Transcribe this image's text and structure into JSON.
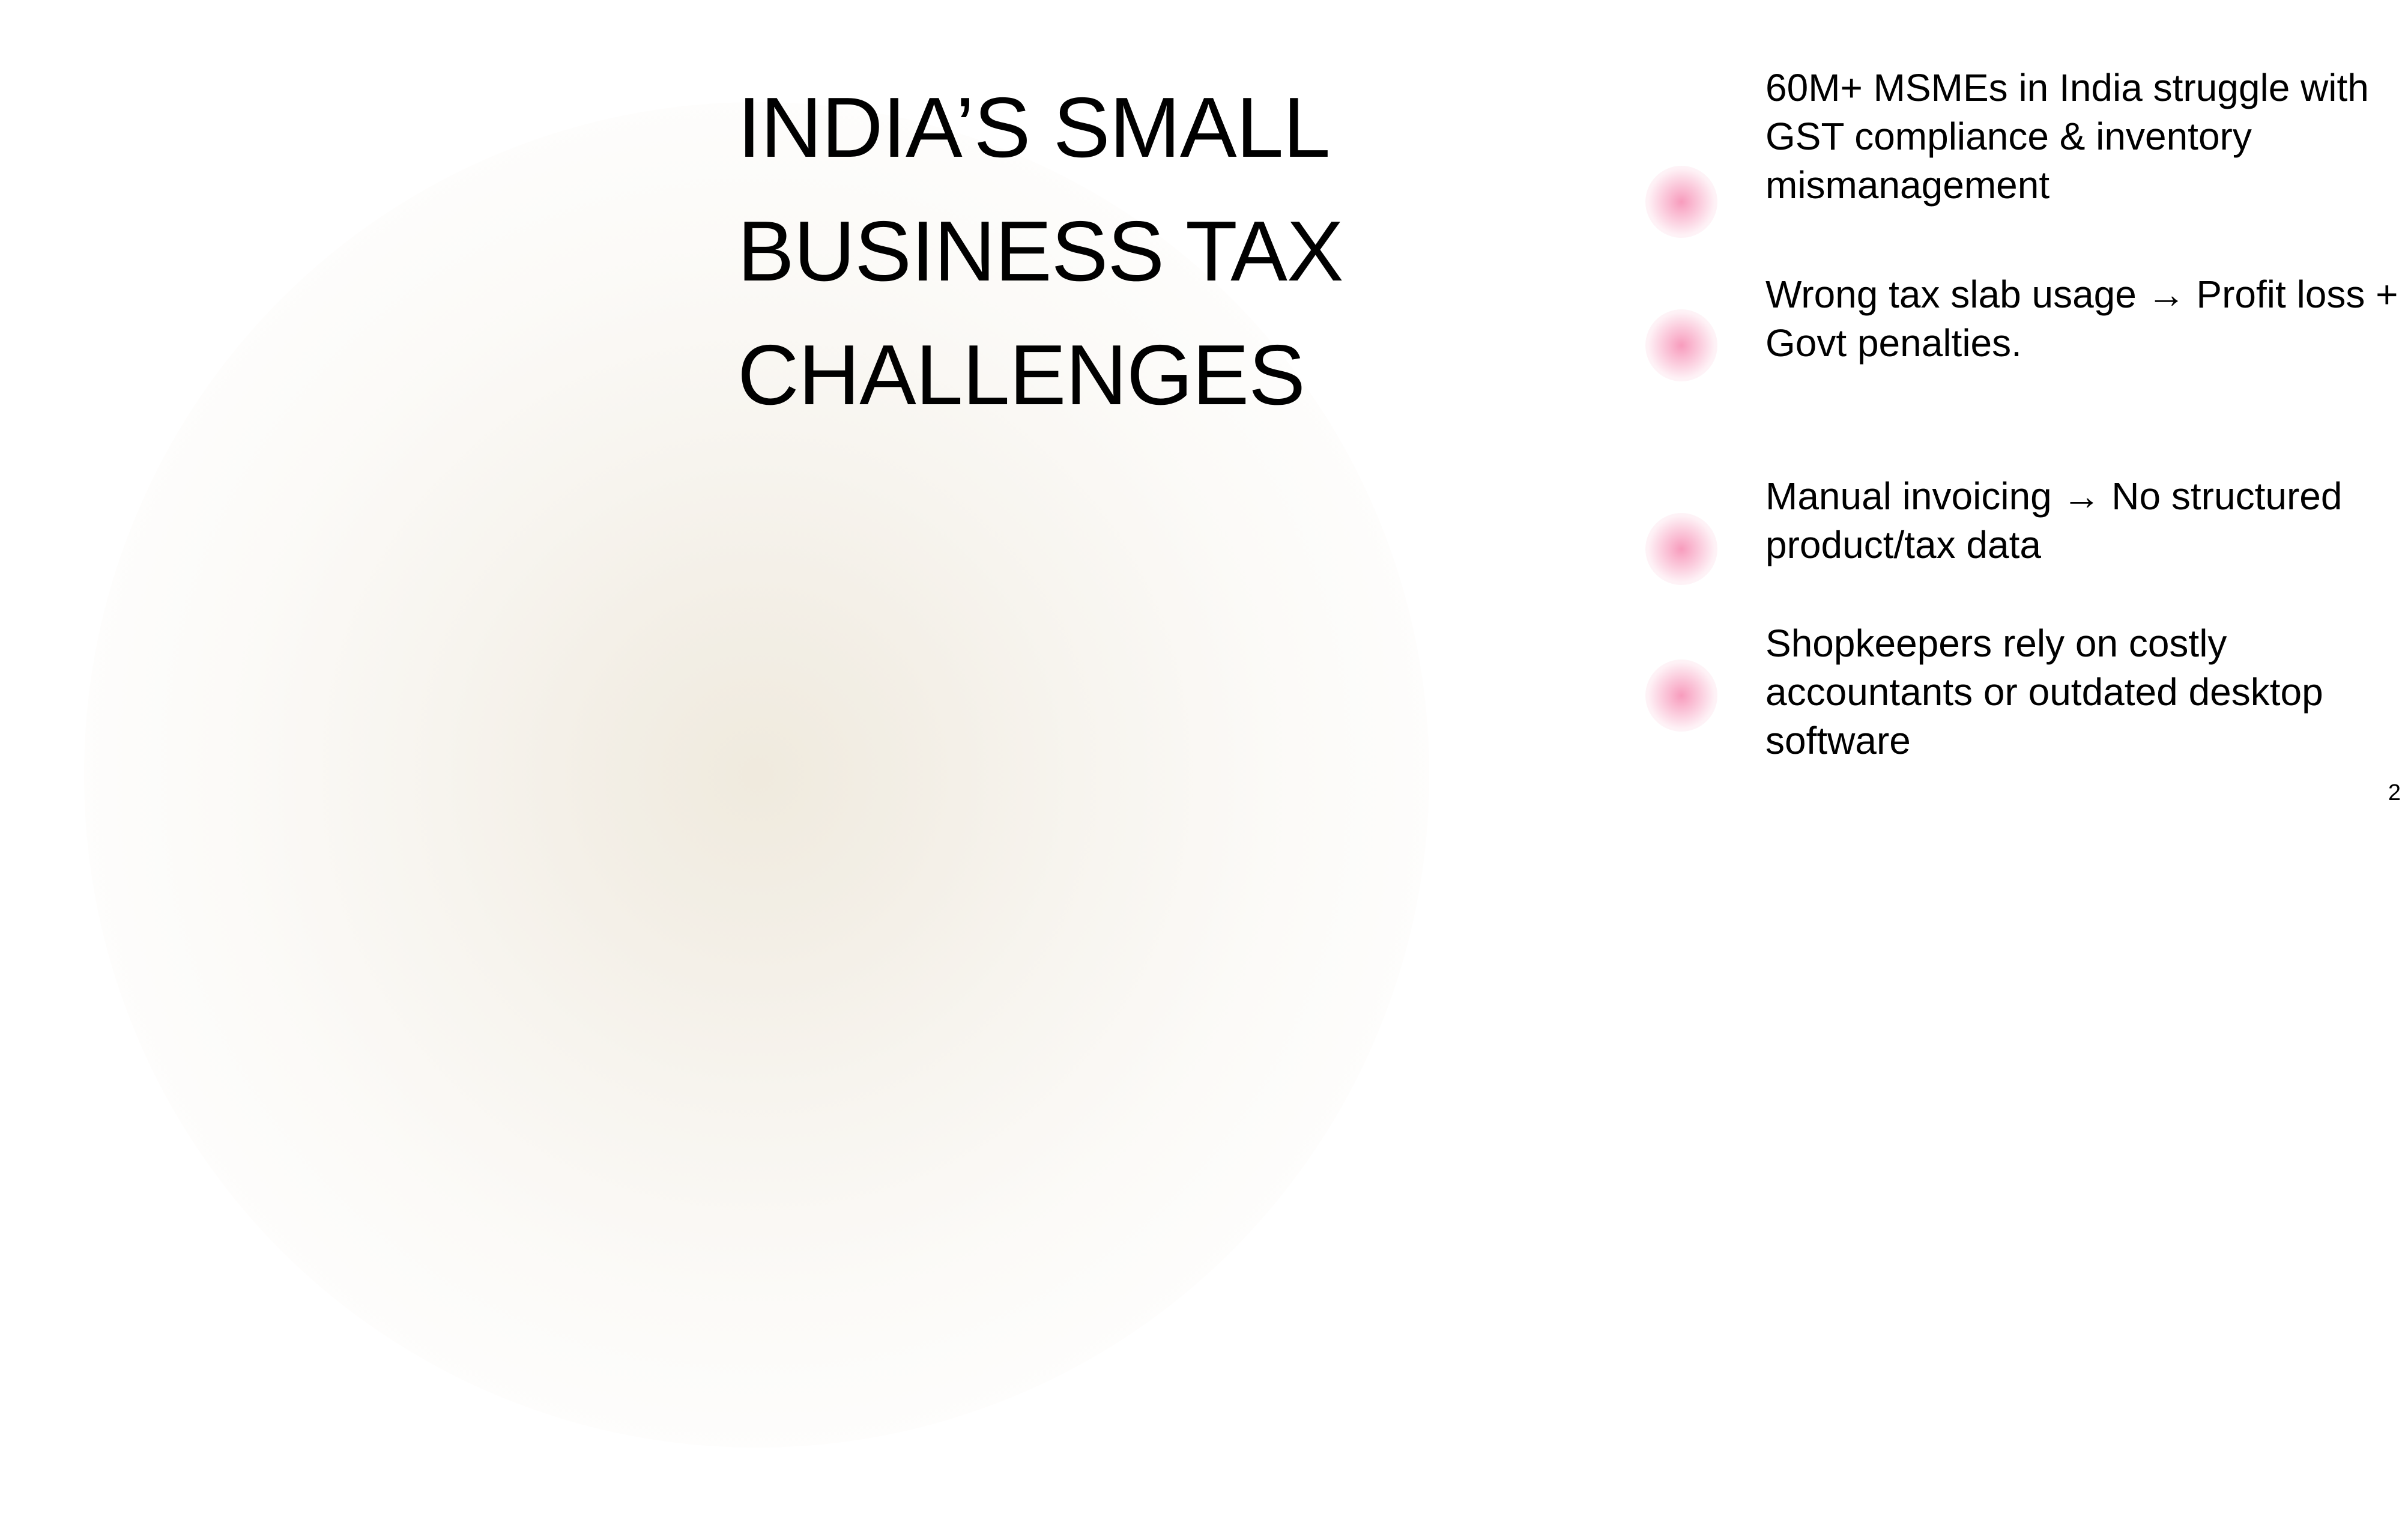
{
  "slide": {
    "title": "INDIA’S SMALL\nBUSINESS TAX\nCHALLENGES",
    "bullets": [
      {
        "text": "60M+ MSMEs in India struggle with GST compliance & inventory mismanagement"
      },
      {
        "text": "Wrong tax slab usage → Profit loss + Govt penalties."
      },
      {
        "text": "Manual invoicing → No structured product/tax data"
      },
      {
        "text": "Shopkeepers rely on costly accountants or outdated desktop software"
      }
    ],
    "page_number": "2",
    "colors": {
      "bullet_dot": "#f796b9",
      "background_glow": "#efe9dc",
      "text": "#000000"
    }
  }
}
